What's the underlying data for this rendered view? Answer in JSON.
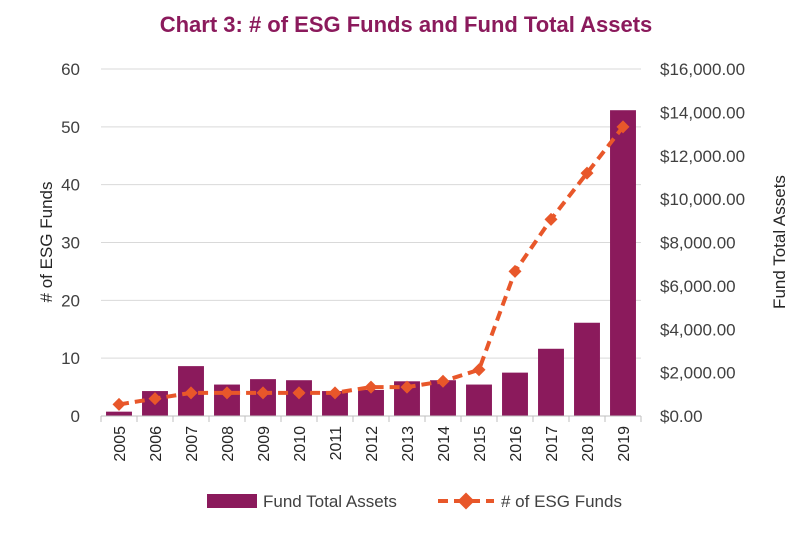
{
  "chart_data": {
    "type": "bar+line",
    "title": "Chart 3: # of ESG Funds and Fund Total Assets",
    "categories": [
      "2005",
      "2006",
      "2007",
      "2008",
      "2009",
      "2010",
      "2011",
      "2012",
      "2013",
      "2014",
      "2015",
      "2016",
      "2017",
      "2018",
      "2019"
    ],
    "series": [
      {
        "name": "Fund Total Assets",
        "type": "bar",
        "axis": "right",
        "color": "#8B1A5C",
        "values": [
          200,
          1150,
          2300,
          1450,
          1700,
          1650,
          1150,
          1200,
          1600,
          1650,
          1450,
          2000,
          3100,
          4300,
          14100
        ]
      },
      {
        "name": "# of ESG Funds",
        "type": "line",
        "axis": "left",
        "color": "#E8572A",
        "style": "dashed",
        "marker": "diamond",
        "values": [
          2,
          3,
          4,
          4,
          4,
          4,
          4,
          5,
          5,
          6,
          8,
          25,
          34,
          42,
          50
        ]
      }
    ],
    "ylabel_left": "# of ESG Funds",
    "ylabel_right": "Fund Total Assets",
    "ylim_left": [
      0,
      60
    ],
    "ylim_right": [
      0,
      16000
    ],
    "yticks_left": [
      "0",
      "10",
      "20",
      "30",
      "40",
      "50",
      "60"
    ],
    "yticks_right": [
      "$0.00",
      "$2,000.00",
      "$4,000.00",
      "$6,000.00",
      "$8,000.00",
      "$10,000.00",
      "$12,000.00",
      "$14,000.00",
      "$16,000.00"
    ],
    "grid": true,
    "legend_position": "bottom"
  }
}
